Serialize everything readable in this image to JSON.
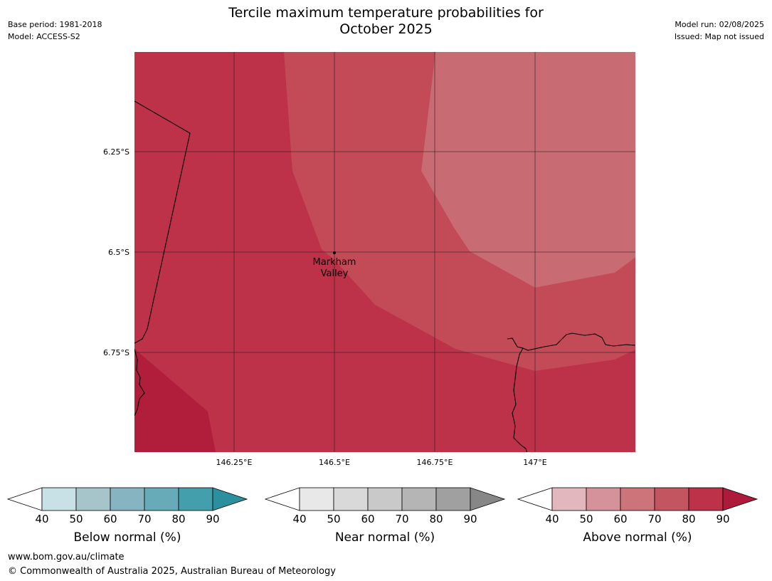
{
  "header": {
    "title_line1": "Tercile maximum temperature probabilities for",
    "title_line2": "October 2025",
    "base_period": "Base period: 1981-2018",
    "model": "Model: ACCESS-S2",
    "model_run": "Model run: 02/08/2025",
    "issued": "Issued: Map not issued"
  },
  "map": {
    "lat_labels": [
      "6.25°S",
      "6.5°S",
      "6.75°S"
    ],
    "lon_labels": [
      "146.25°E",
      "146.5°E",
      "146.75°E",
      "147°E"
    ],
    "location": {
      "name_line1": "Markham",
      "name_line2": "Valley"
    },
    "zone_colors": {
      "above_90": "#b01e3c",
      "above_80": "#bd3149",
      "above_70": "#c24b57",
      "above_60": "#c96b73"
    }
  },
  "legends": [
    {
      "title": "Below normal (%)",
      "ticks": [
        "40",
        "50",
        "60",
        "70",
        "80",
        "90"
      ],
      "colors": [
        "#c8e1e6",
        "#a6c5cb",
        "#86b5c1",
        "#68abb8",
        "#449fad",
        "#2c8f9e"
      ]
    },
    {
      "title": "Near normal (%)",
      "ticks": [
        "40",
        "50",
        "60",
        "70",
        "80",
        "90"
      ],
      "colors": [
        "#e8e8e8",
        "#d9d9d9",
        "#c9c9c9",
        "#b5b5b5",
        "#a0a0a0",
        "#878787"
      ]
    },
    {
      "title": "Above normal (%)",
      "ticks": [
        "40",
        "50",
        "60",
        "70",
        "80",
        "90"
      ],
      "colors": [
        "#e2b7bd",
        "#d6929b",
        "#cc7479",
        "#c25560",
        "#bd3149",
        "#ae1a3a"
      ]
    }
  ],
  "footer": {
    "url": "www.bom.gov.au/climate",
    "copyright": "© Commonwealth of Australia 2025, Australian Bureau of Meteorology"
  }
}
